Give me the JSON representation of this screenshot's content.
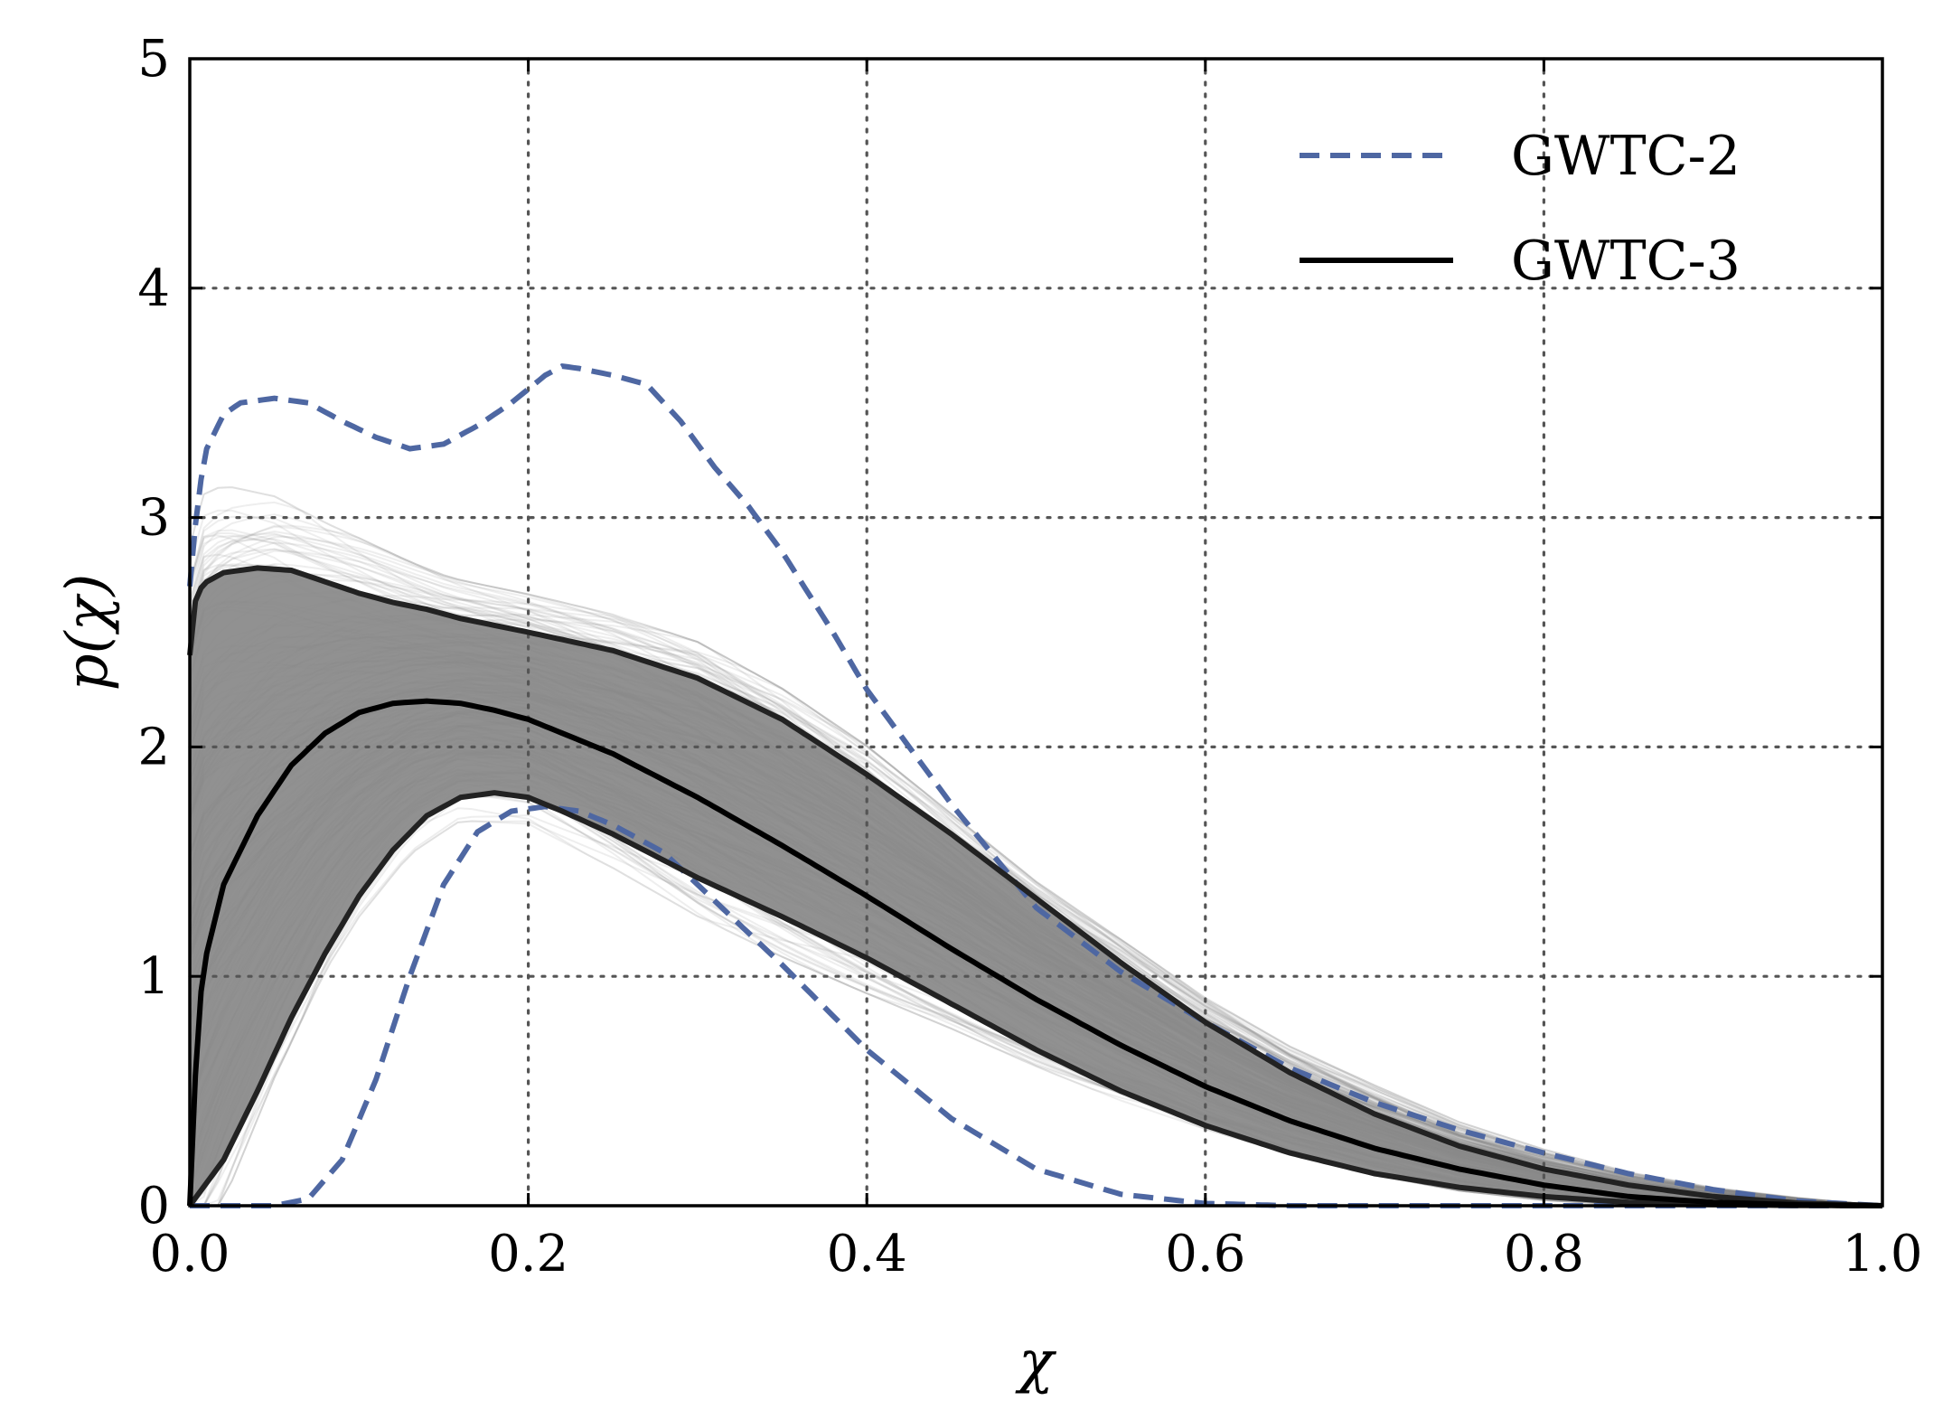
{
  "chart_data": {
    "type": "line",
    "title": "",
    "xlabel": "χ",
    "ylabel": "p(χ)",
    "xlim": [
      0.0,
      1.0
    ],
    "ylim": [
      0,
      5
    ],
    "xticks": [
      0.0,
      0.2,
      0.4,
      0.6,
      0.8,
      1.0
    ],
    "xtick_labels": [
      "0.0",
      "0.2",
      "0.4",
      "0.6",
      "0.8",
      "1.0"
    ],
    "yticks": [
      0,
      1,
      2,
      3,
      4,
      5
    ],
    "ytick_labels": [
      "0",
      "1",
      "2",
      "3",
      "4",
      "5"
    ],
    "grid": true,
    "grid_style": "dotted",
    "legend_position": "top-right",
    "background_draws": {
      "description_color": "#888888",
      "band_lower": {
        "x": [
          0.0,
          0.02,
          0.05,
          0.08,
          0.1,
          0.13,
          0.16,
          0.2,
          0.25,
          0.3,
          0.35,
          0.4,
          0.45,
          0.5,
          0.55,
          0.6,
          0.65,
          0.7,
          0.75,
          0.8,
          0.85,
          0.9,
          0.95,
          1.0
        ],
        "y": [
          0.0,
          0.38,
          0.85,
          1.25,
          1.45,
          1.68,
          1.8,
          1.78,
          1.6,
          1.4,
          1.22,
          1.05,
          0.88,
          0.7,
          0.54,
          0.4,
          0.28,
          0.18,
          0.1,
          0.05,
          0.02,
          0.01,
          0.0,
          0.0
        ]
      },
      "band_upper": {
        "x": [
          0.0,
          0.005,
          0.02,
          0.05,
          0.1,
          0.15,
          0.2,
          0.25,
          0.3,
          0.35,
          0.4,
          0.45,
          0.5,
          0.55,
          0.6,
          0.65,
          0.7,
          0.75,
          0.8,
          0.85,
          0.9,
          0.95,
          1.0
        ],
        "y": [
          2.5,
          2.7,
          2.78,
          2.8,
          2.72,
          2.62,
          2.55,
          2.45,
          2.32,
          2.12,
          1.88,
          1.6,
          1.32,
          1.08,
          0.84,
          0.64,
          0.48,
          0.33,
          0.22,
          0.13,
          0.07,
          0.03,
          0.0
        ]
      }
    },
    "series": [
      {
        "name": "GWTC-2",
        "style": "dashed",
        "color": "#4e67a2",
        "upper": {
          "x": [
            0.0,
            0.005,
            0.01,
            0.02,
            0.03,
            0.05,
            0.07,
            0.09,
            0.11,
            0.13,
            0.15,
            0.17,
            0.19,
            0.21,
            0.22,
            0.23,
            0.25,
            0.27,
            0.29,
            0.31,
            0.33,
            0.35,
            0.38,
            0.4,
            0.45,
            0.5,
            0.55,
            0.6,
            0.65,
            0.7,
            0.75,
            0.8,
            0.85,
            0.9,
            0.95,
            1.0
          ],
          "y": [
            2.7,
            3.1,
            3.3,
            3.45,
            3.5,
            3.52,
            3.5,
            3.42,
            3.35,
            3.3,
            3.32,
            3.4,
            3.5,
            3.62,
            3.66,
            3.65,
            3.62,
            3.58,
            3.42,
            3.22,
            3.05,
            2.85,
            2.5,
            2.25,
            1.75,
            1.3,
            1.02,
            0.8,
            0.6,
            0.45,
            0.33,
            0.23,
            0.14,
            0.07,
            0.02,
            0.0
          ]
        },
        "lower": {
          "x": [
            0.0,
            0.05,
            0.07,
            0.09,
            0.11,
            0.13,
            0.15,
            0.17,
            0.19,
            0.21,
            0.23,
            0.25,
            0.28,
            0.3,
            0.35,
            0.4,
            0.45,
            0.5,
            0.55,
            0.6,
            0.65,
            0.7,
            0.8,
            1.0
          ],
          "y": [
            0.0,
            0.0,
            0.03,
            0.2,
            0.55,
            1.0,
            1.4,
            1.63,
            1.72,
            1.74,
            1.72,
            1.66,
            1.54,
            1.4,
            1.05,
            0.68,
            0.38,
            0.16,
            0.05,
            0.01,
            0.0,
            0.0,
            0.0,
            0.0
          ]
        }
      },
      {
        "name": "GWTC-3",
        "style": "solid",
        "color": "#000000",
        "median": {
          "x": [
            0.0,
            0.005,
            0.01,
            0.02,
            0.04,
            0.06,
            0.08,
            0.1,
            0.12,
            0.14,
            0.16,
            0.18,
            0.2,
            0.25,
            0.3,
            0.35,
            0.4,
            0.45,
            0.5,
            0.55,
            0.6,
            0.65,
            0.7,
            0.75,
            0.8,
            0.85,
            0.9,
            0.95,
            1.0
          ],
          "y": [
            0.0,
            0.85,
            1.1,
            1.4,
            1.7,
            1.92,
            2.06,
            2.15,
            2.19,
            2.2,
            2.19,
            2.16,
            2.12,
            1.97,
            1.78,
            1.57,
            1.35,
            1.12,
            0.9,
            0.7,
            0.52,
            0.37,
            0.25,
            0.16,
            0.09,
            0.04,
            0.015,
            0.004,
            0.0
          ]
        },
        "lower": {
          "x": [
            0.0,
            0.02,
            0.04,
            0.06,
            0.08,
            0.1,
            0.12,
            0.14,
            0.16,
            0.18,
            0.2,
            0.22,
            0.25,
            0.3,
            0.35,
            0.4,
            0.45,
            0.5,
            0.55,
            0.6,
            0.65,
            0.7,
            0.75,
            0.8,
            0.85,
            0.9,
            0.95,
            1.0
          ],
          "y": [
            0.0,
            0.2,
            0.5,
            0.82,
            1.1,
            1.35,
            1.55,
            1.7,
            1.78,
            1.8,
            1.78,
            1.72,
            1.62,
            1.43,
            1.26,
            1.08,
            0.88,
            0.68,
            0.5,
            0.35,
            0.23,
            0.14,
            0.08,
            0.04,
            0.015,
            0.005,
            0.001,
            0.0
          ]
        },
        "upper": {
          "x": [
            0.0,
            0.002,
            0.005,
            0.01,
            0.02,
            0.04,
            0.06,
            0.08,
            0.1,
            0.12,
            0.14,
            0.16,
            0.18,
            0.2,
            0.25,
            0.3,
            0.35,
            0.4,
            0.45,
            0.5,
            0.55,
            0.6,
            0.65,
            0.7,
            0.75,
            0.8,
            0.85,
            0.9,
            0.95,
            1.0
          ],
          "y": [
            2.4,
            2.6,
            2.68,
            2.72,
            2.76,
            2.78,
            2.77,
            2.72,
            2.67,
            2.63,
            2.6,
            2.56,
            2.53,
            2.5,
            2.42,
            2.3,
            2.12,
            1.88,
            1.62,
            1.34,
            1.06,
            0.8,
            0.58,
            0.4,
            0.26,
            0.16,
            0.09,
            0.04,
            0.012,
            0.0
          ]
        }
      }
    ]
  }
}
